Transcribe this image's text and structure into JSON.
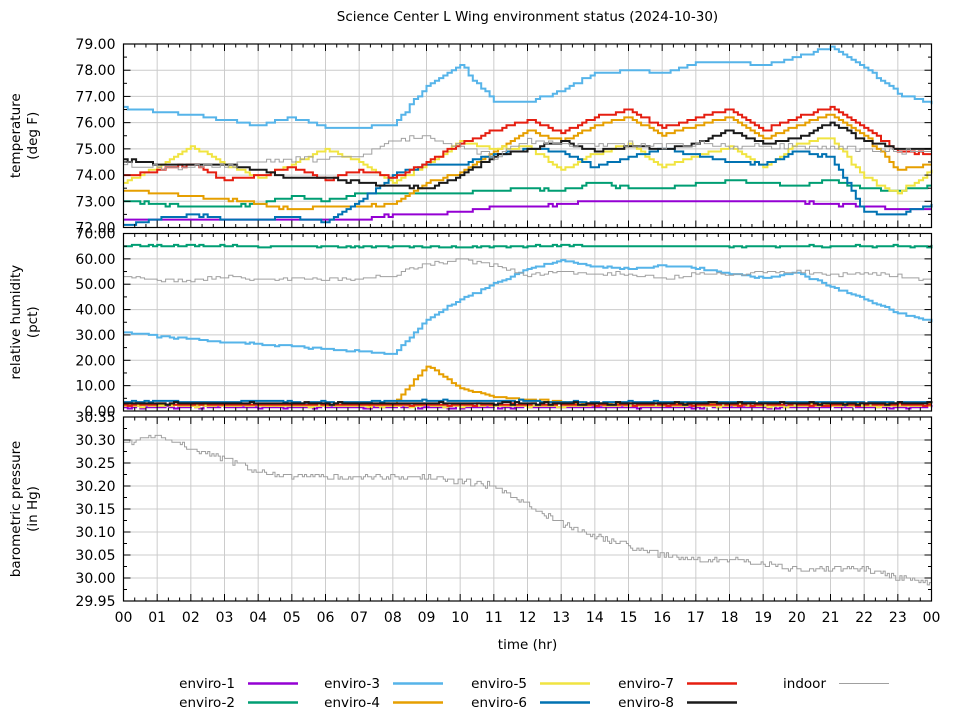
{
  "title": "Science Center L Wing environment status (2024-10-30)",
  "xlabel": "time (hr)",
  "chart_data": {
    "type": "line",
    "x_hours": [
      0,
      1,
      2,
      3,
      4,
      5,
      6,
      7,
      8,
      9,
      10,
      11,
      12,
      13,
      14,
      15,
      16,
      17,
      18,
      19,
      20,
      21,
      22,
      23,
      24
    ],
    "xtick_labels": [
      "00",
      "01",
      "02",
      "03",
      "04",
      "05",
      "06",
      "07",
      "08",
      "09",
      "10",
      "11",
      "12",
      "13",
      "14",
      "15",
      "16",
      "17",
      "18",
      "19",
      "20",
      "21",
      "22",
      "23",
      "00"
    ],
    "xlim": [
      0,
      24
    ],
    "grid": true,
    "panels": [
      {
        "id": "temperature",
        "key": "temperature",
        "ylabel_lines": [
          "temperature",
          "(deg F)"
        ],
        "ylim": [
          72,
          79
        ],
        "yticks": [
          79,
          78,
          77,
          76,
          75,
          74,
          73,
          72
        ],
        "ytick_labels": [
          "79.00",
          "78.00",
          "77.00",
          "76.00",
          "75.00",
          "74.00",
          "73.00",
          "72.00"
        ]
      },
      {
        "id": "humidity",
        "key": "humidity",
        "ylabel_lines": [
          "relative humidity",
          "(pct)"
        ],
        "ylim": [
          0,
          70
        ],
        "yticks": [
          70,
          60,
          50,
          40,
          30,
          20,
          10,
          0
        ],
        "ytick_labels": [
          "70.00",
          "60.00",
          "50.00",
          "40.00",
          "30.00",
          "20.00",
          "10.00",
          "0.00"
        ]
      },
      {
        "id": "pressure",
        "key": "pressure",
        "ylabel_lines": [
          "barometric pressure",
          "(in Hg)"
        ],
        "ylim": [
          29.95,
          30.35
        ],
        "yticks": [
          30.35,
          30.3,
          30.25,
          30.2,
          30.15,
          30.1,
          30.05,
          30.0,
          29.95
        ],
        "ytick_labels": [
          "30.35",
          "30.30",
          "30.25",
          "30.20",
          "30.15",
          "30.10",
          "30.05",
          "30.00",
          "29.95"
        ]
      }
    ],
    "series": [
      {
        "name": "enviro-1",
        "color": "#9400d3",
        "width": 2,
        "temperature": [
          72.3,
          72.3,
          72.3,
          72.3,
          72.3,
          72.3,
          72.3,
          72.3,
          72.5,
          72.5,
          72.6,
          72.8,
          72.8,
          72.9,
          73.0,
          73.0,
          73.0,
          73.0,
          73.0,
          73.0,
          73.0,
          72.9,
          72.8,
          72.7,
          72.7
        ],
        "humidity": [
          1.5,
          1.5,
          1.5,
          1.5,
          1.5,
          1.5,
          1.5,
          1.5,
          1.5,
          1.5,
          1.5,
          1.5,
          1.5,
          1.5,
          1.5,
          1.5,
          1.5,
          1.5,
          1.5,
          1.5,
          1.5,
          1.5,
          1.5,
          1.5,
          1.5
        ]
      },
      {
        "name": "enviro-2",
        "color": "#009e73",
        "width": 2,
        "temperature": [
          73.0,
          72.9,
          72.8,
          72.8,
          72.9,
          73.2,
          73.0,
          73.3,
          73.3,
          73.3,
          73.3,
          73.4,
          73.5,
          73.4,
          73.7,
          73.5,
          73.5,
          73.7,
          73.8,
          73.7,
          73.6,
          73.8,
          73.5,
          73.4,
          73.6
        ],
        "humidity": [
          65.2,
          65.2,
          65.2,
          65.2,
          64.8,
          64.8,
          64.8,
          64.8,
          64.8,
          64.8,
          64.8,
          64.8,
          64.9,
          65.4,
          65.0,
          65.0,
          65.0,
          65.0,
          65.0,
          65.0,
          65.0,
          65.0,
          65.0,
          65.0,
          65.0
        ]
      },
      {
        "name": "enviro-3",
        "color": "#56b4e9",
        "width": 2,
        "temperature": [
          76.6,
          76.4,
          76.3,
          76.1,
          75.9,
          76.2,
          75.8,
          75.8,
          75.9,
          77.4,
          78.2,
          76.8,
          76.8,
          77.2,
          77.9,
          78.0,
          77.9,
          78.3,
          78.3,
          78.2,
          78.5,
          78.9,
          78.1,
          77.1,
          76.7
        ],
        "humidity": [
          31,
          29.5,
          28.5,
          27,
          26.5,
          25.5,
          24.5,
          23.5,
          22.3,
          36,
          44,
          50,
          56,
          59.5,
          57,
          56,
          57.5,
          56.5,
          54,
          52.5,
          54.5,
          49,
          44,
          38.5,
          35.2
        ]
      },
      {
        "name": "enviro-4",
        "color": "#e69f00",
        "width": 2,
        "temperature": [
          73.4,
          73.3,
          73.2,
          73.1,
          72.9,
          72.7,
          72.8,
          72.8,
          72.9,
          73.7,
          74.1,
          74.9,
          75.7,
          75.3,
          75.9,
          76.2,
          75.5,
          75.9,
          76.2,
          75.4,
          75.9,
          76.3,
          75.5,
          74.2,
          74.4
        ],
        "humidity": [
          2.5,
          2.5,
          2.5,
          2.5,
          2.5,
          2.5,
          2.5,
          2.5,
          2.5,
          18,
          9,
          5.5,
          4.5,
          3.5,
          3,
          3,
          3,
          3,
          3,
          3,
          3,
          3,
          3,
          3,
          3
        ]
      },
      {
        "name": "enviro-5",
        "color": "#f0e442",
        "width": 2,
        "temperature": [
          73.7,
          74.3,
          75.1,
          74.4,
          73.9,
          74.4,
          75.0,
          74.5,
          73.7,
          74.4,
          75.3,
          75.0,
          75.1,
          74.2,
          74.8,
          75.2,
          74.3,
          74.7,
          75.1,
          74.3,
          75.2,
          75.4,
          73.9,
          73.3,
          74.2
        ],
        "humidity": [
          2,
          2,
          2,
          2,
          2,
          2,
          2,
          2,
          2,
          2,
          2,
          2,
          2,
          2,
          2,
          2,
          2,
          2,
          2,
          2,
          2,
          2,
          2,
          2,
          2
        ]
      },
      {
        "name": "enviro-6",
        "color": "#0072b2",
        "width": 2,
        "temperature": [
          72.1,
          72.3,
          72.5,
          72.3,
          72.3,
          72.4,
          72.2,
          73.0,
          74.0,
          74.4,
          74.4,
          74.8,
          75.0,
          74.9,
          74.3,
          74.7,
          75.0,
          74.8,
          74.5,
          74.4,
          74.9,
          74.7,
          72.6,
          72.5,
          72.9
        ],
        "humidity": [
          3.5,
          4,
          3.5,
          3.5,
          4,
          3.5,
          3.5,
          3.5,
          4,
          4,
          4,
          4,
          4,
          3.5,
          3.5,
          3.5,
          3.5,
          3.5,
          3.5,
          3.5,
          3.5,
          3.5,
          3.5,
          3.5,
          3.5
        ]
      },
      {
        "name": "enviro-7",
        "color": "#e51e10",
        "width": 2,
        "temperature": [
          74.0,
          74.2,
          74.4,
          73.8,
          74.0,
          74.3,
          73.8,
          74.2,
          73.9,
          74.5,
          75.2,
          75.7,
          76.1,
          75.6,
          76.2,
          76.5,
          75.8,
          76.2,
          76.5,
          75.7,
          76.2,
          76.6,
          75.8,
          74.9,
          74.8
        ],
        "humidity": [
          2.5,
          2.5,
          2.5,
          2.5,
          2.5,
          2.5,
          2.5,
          2.5,
          2.5,
          2.5,
          2.5,
          2.5,
          2.5,
          2.5,
          2.5,
          2.5,
          2.5,
          2.5,
          2.5,
          2.5,
          2.5,
          2.5,
          2.5,
          2.5,
          2.5
        ]
      },
      {
        "name": "enviro-8",
        "color": "#1a1a1a",
        "width": 2,
        "temperature": [
          74.6,
          74.4,
          74.4,
          74.4,
          74.2,
          73.9,
          73.9,
          73.7,
          73.6,
          73.5,
          74.0,
          74.7,
          75.0,
          75.3,
          74.9,
          75.1,
          75.0,
          75.2,
          75.7,
          75.2,
          75.4,
          76.0,
          75.3,
          75.0,
          75.0
        ],
        "humidity": [
          3,
          3,
          3,
          3,
          3,
          3,
          3,
          3,
          3,
          3,
          3,
          3,
          3,
          3,
          3,
          3,
          3,
          3,
          3,
          3,
          3,
          3,
          3,
          3,
          3
        ]
      },
      {
        "name": "indoor",
        "color": "#a0a0a0",
        "width": 1,
        "temperature": [
          74.4,
          74.3,
          74.3,
          74.3,
          74.5,
          74.6,
          74.6,
          74.7,
          75.3,
          75.5,
          75.1,
          74.7,
          75.3,
          75.2,
          75.1,
          75.2,
          75.1,
          75.2,
          75.1,
          75.1,
          75.1,
          75.0,
          75.0,
          74.9,
          74.9
        ],
        "humidity": [
          53.5,
          51.5,
          51.5,
          53,
          52,
          52,
          52,
          52,
          53.5,
          58,
          59.8,
          57.5,
          53.5,
          54.5,
          54.3,
          54,
          52.5,
          54,
          54,
          55,
          55,
          53.5,
          54,
          53.5,
          51.5
        ],
        "pressure": [
          30.29,
          30.31,
          30.28,
          30.26,
          30.23,
          30.22,
          30.22,
          30.22,
          30.22,
          30.22,
          30.21,
          30.2,
          30.16,
          30.12,
          30.09,
          30.07,
          30.05,
          30.04,
          30.04,
          30.03,
          30.02,
          30.02,
          30.02,
          30.0,
          29.99
        ]
      }
    ],
    "legend_position": "bottom"
  }
}
